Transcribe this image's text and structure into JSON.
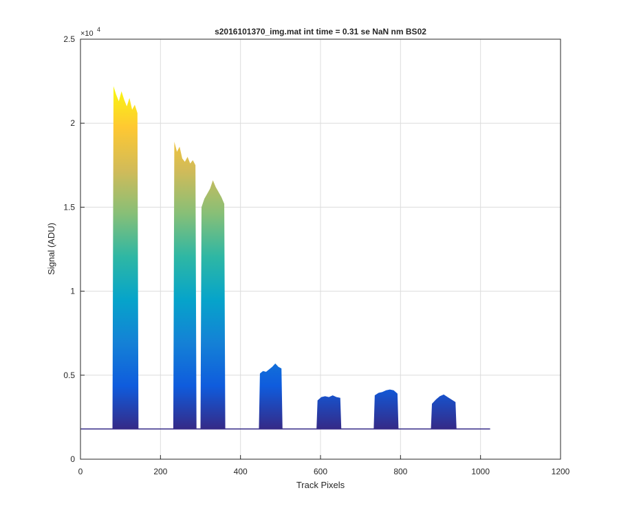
{
  "chart_data": {
    "type": "area",
    "title": "s2016101370_img.mat int time = 0.31 se  NaN nm BS02",
    "xlabel": "Track Pixels",
    "ylabel": "Signal (ADU)",
    "xlim": [
      0,
      1200
    ],
    "ylim": [
      0,
      25000
    ],
    "grid": true,
    "legend": "none",
    "x_ticks": [
      0,
      200,
      400,
      600,
      800,
      1000,
      1200
    ],
    "x_tick_labels": [
      "0",
      "200",
      "400",
      "600",
      "800",
      "1000",
      "1200"
    ],
    "y_ticks": [
      0,
      5000,
      10000,
      15000,
      20000,
      25000
    ],
    "y_tick_labels": [
      "0",
      "0.5",
      "1",
      "1.5",
      "2",
      "2.5"
    ],
    "y_exponent": {
      "base": "×10",
      "power": "4"
    },
    "baseline": 1800,
    "x_range": [
      1,
      1024
    ],
    "colormap": [
      "#352a87",
      "#0f5cdd",
      "#1481d6",
      "#06a4ca",
      "#2eb7a4",
      "#87bf77",
      "#d1bb59",
      "#fec832",
      "#f9fb0e"
    ],
    "peaks": [
      {
        "name": "band-1",
        "x_start": 80,
        "x_end": 145,
        "values": [
          22200,
          21700,
          21300,
          21900,
          21400,
          21000,
          21500,
          20800,
          21100,
          20600
        ]
      },
      {
        "name": "band-2",
        "x_start": 232,
        "x_end": 290,
        "values": [
          18900,
          18300,
          18600,
          17900,
          17700,
          18000,
          17600,
          17800,
          17500
        ]
      },
      {
        "name": "band-3",
        "x_start": 300,
        "x_end": 362,
        "values": [
          15000,
          15500,
          15800,
          16100,
          16600,
          16200,
          15900,
          15600,
          15200
        ]
      },
      {
        "name": "band-4",
        "x_start": 446,
        "x_end": 505,
        "values": [
          5100,
          5250,
          5200,
          5350,
          5500,
          5700,
          5500,
          5400
        ]
      },
      {
        "name": "band-5",
        "x_start": 590,
        "x_end": 652,
        "values": [
          3500,
          3700,
          3750,
          3700,
          3800,
          3700,
          3650
        ]
      },
      {
        "name": "band-6",
        "x_start": 733,
        "x_end": 795,
        "values": [
          3800,
          3950,
          4000,
          4100,
          4150,
          4100,
          3900
        ]
      },
      {
        "name": "band-7",
        "x_start": 876,
        "x_end": 940,
        "values": [
          3300,
          3550,
          3750,
          3850,
          3700,
          3550,
          3400
        ]
      }
    ]
  }
}
